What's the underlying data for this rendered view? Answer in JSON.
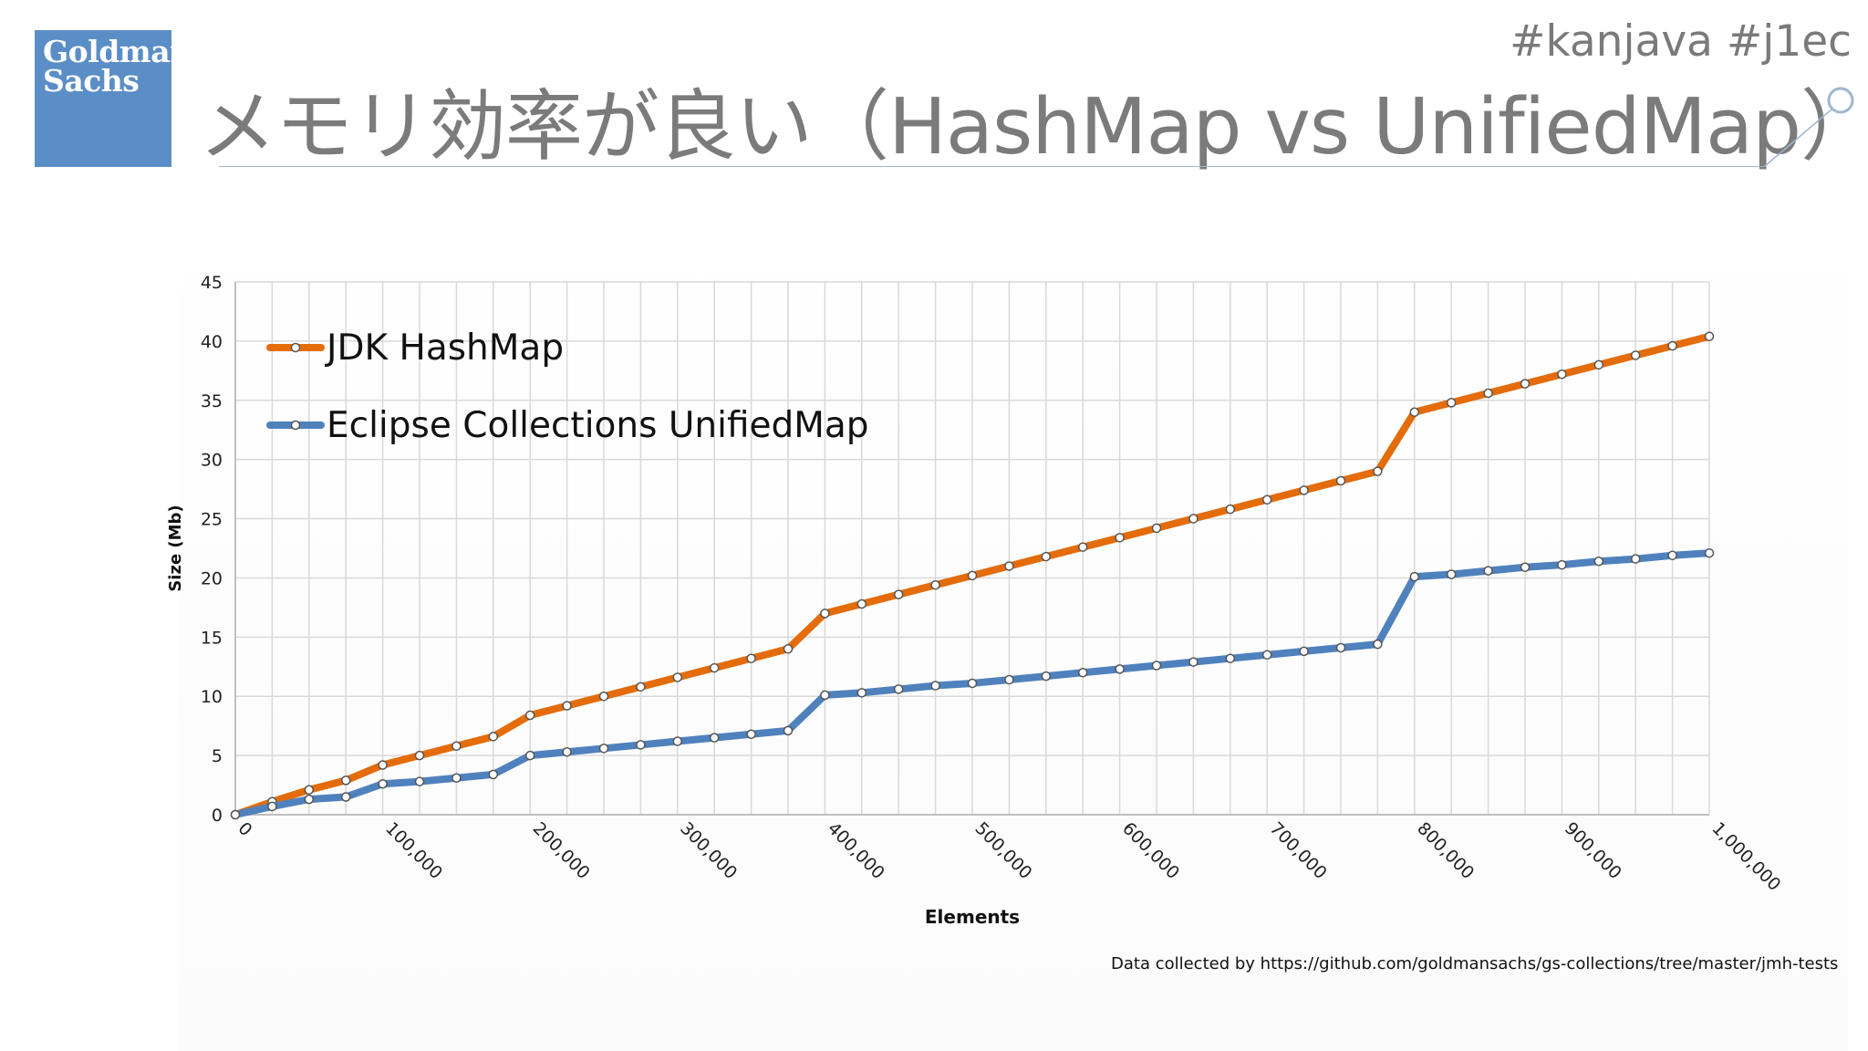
{
  "header": {
    "logo_line1": "Goldman",
    "logo_line2": "Sachs",
    "hashtags": "#kanjava #j1ec",
    "title": "メモリ効率が良い（HashMap vs UnifiedMap）"
  },
  "colors": {
    "hashmap": "#e46c0a",
    "unifiedmap": "#4f81bd",
    "grid": "#d9d9d9",
    "title_text": "#7b7b7b"
  },
  "chart_data": {
    "type": "line",
    "title": "",
    "xlabel": "Elements",
    "ylabel": "Size (Mb)",
    "xlim": [
      0,
      1000000
    ],
    "ylim": [
      0,
      45
    ],
    "grid": true,
    "legend_position": "top-left",
    "x_tick_labels": [
      "0",
      "100,000",
      "200,000",
      "300,000",
      "400,000",
      "500,000",
      "600,000",
      "700,000",
      "800,000",
      "900,000",
      "1,000,000"
    ],
    "y_tick_labels": [
      "0",
      "5",
      "10",
      "15",
      "20",
      "25",
      "30",
      "35",
      "40",
      "45"
    ],
    "x": [
      0,
      25000,
      50000,
      75000,
      100000,
      125000,
      150000,
      175000,
      200000,
      225000,
      250000,
      275000,
      300000,
      325000,
      350000,
      375000,
      400000,
      425000,
      450000,
      475000,
      500000,
      525000,
      550000,
      575000,
      600000,
      625000,
      650000,
      675000,
      700000,
      725000,
      750000,
      775000,
      800000,
      825000,
      850000,
      875000,
      900000,
      925000,
      950000,
      975000,
      1000000
    ],
    "series": [
      {
        "name": "JDK HashMap",
        "values": [
          0,
          1.1,
          2.1,
          2.9,
          4.2,
          5.0,
          5.8,
          6.6,
          8.4,
          9.2,
          10.0,
          10.8,
          11.6,
          12.4,
          13.2,
          14.0,
          17.0,
          17.8,
          18.6,
          19.4,
          20.2,
          21.0,
          21.8,
          22.6,
          23.4,
          24.2,
          25.0,
          25.8,
          26.6,
          27.4,
          28.2,
          29.0,
          34.0,
          34.8,
          35.6,
          36.4,
          37.2,
          38.0,
          38.8,
          39.6,
          40.4
        ]
      },
      {
        "name": "Eclipse Collections UnifiedMap",
        "values": [
          0,
          0.7,
          1.3,
          1.5,
          2.6,
          2.8,
          3.1,
          3.4,
          5.0,
          5.3,
          5.6,
          5.9,
          6.2,
          6.5,
          6.8,
          7.1,
          10.1,
          10.3,
          10.6,
          10.9,
          11.1,
          11.4,
          11.7,
          12.0,
          12.3,
          12.6,
          12.9,
          13.2,
          13.5,
          13.8,
          14.1,
          14.4,
          20.1,
          20.3,
          20.6,
          20.9,
          21.1,
          21.4,
          21.6,
          21.9,
          22.1
        ]
      }
    ]
  },
  "footer": {
    "source_note": "Data collected by https://github.com/goldmansachs/gs-collections/tree/master/jmh-tests"
  }
}
